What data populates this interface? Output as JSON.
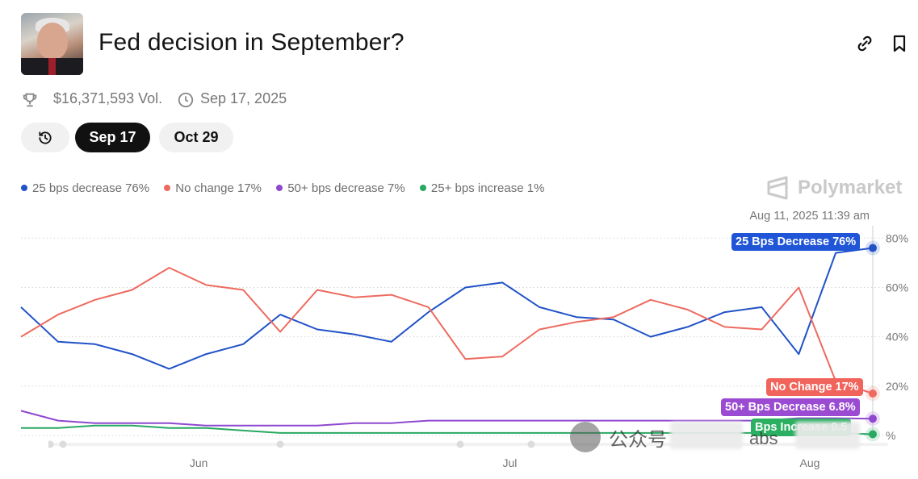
{
  "header": {
    "title": "Fed decision in September?",
    "avatar_alt_icon": "portrait-avatar"
  },
  "meta": {
    "volume": "$16,371,593 Vol.",
    "date": "Sep 17, 2025"
  },
  "tabs": [
    {
      "label": "",
      "icon": "history-icon"
    },
    {
      "label": "Sep 17",
      "active": true
    },
    {
      "label": "Oct 29",
      "active": false
    }
  ],
  "legend": [
    {
      "label": "25 bps decrease 76%",
      "color": "#2152c8"
    },
    {
      "label": "No change 17%",
      "color": "#ee6a5f"
    },
    {
      "label": "50+ bps decrease 7%",
      "color": "#8f48cf"
    },
    {
      "label": "25+ bps increase 1%",
      "color": "#28a862"
    }
  ],
  "brand": "Polymarket",
  "hover_timestamp": "Aug 11, 2025 11:39 am",
  "end_labels": {
    "bps25": "25 Bps Decrease 76%",
    "no_change": "No Change 17%",
    "bps50": "50+ Bps Decrease 6.8%",
    "increase": "Bps Increase 0.5"
  },
  "watermark": {
    "text": "公众号",
    "text2": "abs"
  },
  "colors": {
    "blue": "#2152c8",
    "red": "#ee6a5f",
    "purple": "#8f48cf",
    "green": "#28a862",
    "active_tab": "#111111"
  },
  "chart_data": {
    "type": "line",
    "x_labels": [
      "Jun",
      "Jul",
      "Aug"
    ],
    "ylim": [
      0,
      85
    ],
    "y_ticks": [
      0,
      20,
      40,
      60,
      80
    ],
    "y_tick_labels": [
      "%",
      "20%",
      "40%",
      "60%",
      "80%"
    ],
    "grid": true,
    "x": [
      "May 14",
      "May 18",
      "May 22",
      "May 26",
      "May 30",
      "Jun 3",
      "Jun 7",
      "Jun 11",
      "Jun 15",
      "Jun 19",
      "Jun 23",
      "Jun 27",
      "Jul 1",
      "Jul 5",
      "Jul 9",
      "Jul 13",
      "Jul 17",
      "Jul 21",
      "Jul 25",
      "Jul 29",
      "Aug 1",
      "Aug 4",
      "Aug 7",
      "Aug 11"
    ],
    "series": [
      {
        "name": "25 bps decrease",
        "color": "#2152c8",
        "values": [
          52,
          38,
          37,
          33,
          27,
          33,
          37,
          49,
          43,
          41,
          38,
          50,
          60,
          62,
          52,
          48,
          47,
          40,
          44,
          50,
          52,
          33,
          74,
          76
        ]
      },
      {
        "name": "No change",
        "color": "#ee6a5f",
        "values": [
          40,
          49,
          55,
          59,
          68,
          61,
          59,
          42,
          59,
          56,
          57,
          52,
          31,
          32,
          43,
          46,
          48,
          55,
          51,
          44,
          43,
          60,
          22,
          17
        ]
      },
      {
        "name": "50+ bps decrease",
        "color": "#8f48cf",
        "values": [
          10,
          6,
          5,
          5,
          5,
          4,
          4,
          4,
          4,
          5,
          5,
          6,
          6,
          6,
          6,
          6,
          6,
          6,
          6,
          6,
          6,
          7,
          7,
          6.8
        ]
      },
      {
        "name": "25+ bps increase",
        "color": "#28a862",
        "values": [
          3,
          3,
          4,
          4,
          3,
          3,
          2,
          1,
          1,
          1,
          1,
          1,
          1,
          1,
          1,
          1,
          1,
          1,
          1,
          1,
          1,
          1,
          1,
          0.5
        ]
      }
    ]
  }
}
